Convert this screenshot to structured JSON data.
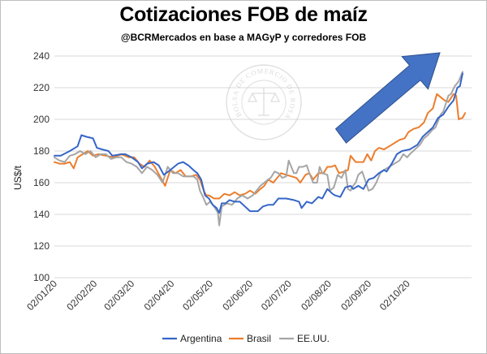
{
  "header": {
    "title": "Cotizaciones FOB de maíz",
    "subtitle": "@BCRMercados  en base a MAGyP y corredores FOB"
  },
  "watermark": {
    "text": "BOLSA DE COMERCIO DE ROSARIO"
  },
  "colors": {
    "argentina": "#3566c8",
    "brasil": "#ec7d2c",
    "eeuu": "#a5a5a5",
    "arrow": "#4472c4",
    "grid": "#d9d9d9"
  },
  "chart_data": {
    "type": "line",
    "title": "Cotizaciones FOB de maíz",
    "xlabel": "",
    "ylabel": "US$/t",
    "ylim": [
      100,
      240
    ],
    "yticks": [
      100,
      120,
      140,
      160,
      180,
      200,
      220,
      240
    ],
    "x_tick_labels": [
      "02/01/20",
      "02/02/20",
      "02/03/20",
      "02/04/20",
      "02/05/20",
      "02/06/20",
      "02/07/20",
      "02/08/20",
      "02/09/20",
      "02/10/20"
    ],
    "x_start": "2020-01-02",
    "legend_position": "bottom",
    "grid": true,
    "series": [
      {
        "name": "Argentina",
        "key": "argentina",
        "points": [
          [
            0,
            177
          ],
          [
            5,
            177
          ],
          [
            12,
            180
          ],
          [
            18,
            183
          ],
          [
            21,
            190
          ],
          [
            25,
            189
          ],
          [
            30,
            188
          ],
          [
            33,
            182
          ],
          [
            37,
            181
          ],
          [
            42,
            180
          ],
          [
            45,
            177
          ],
          [
            52,
            178
          ],
          [
            55,
            178
          ],
          [
            60,
            176
          ],
          [
            65,
            173
          ],
          [
            68,
            169
          ],
          [
            72,
            172
          ],
          [
            77,
            173
          ],
          [
            81,
            171
          ],
          [
            85,
            165
          ],
          [
            90,
            168
          ],
          [
            96,
            172
          ],
          [
            100,
            173
          ],
          [
            104,
            171
          ],
          [
            108,
            168
          ],
          [
            111,
            166
          ],
          [
            114,
            162
          ],
          [
            117,
            152
          ],
          [
            120,
            150
          ],
          [
            123,
            146
          ],
          [
            126,
            144
          ],
          [
            128,
            141
          ],
          [
            130,
            147
          ],
          [
            133,
            147
          ],
          [
            136,
            149
          ],
          [
            140,
            148
          ],
          [
            144,
            148
          ],
          [
            148,
            145
          ],
          [
            152,
            142
          ],
          [
            158,
            142
          ],
          [
            162,
            145
          ],
          [
            166,
            146
          ],
          [
            170,
            146
          ],
          [
            174,
            150
          ],
          [
            180,
            150
          ],
          [
            186,
            149
          ],
          [
            190,
            148
          ],
          [
            192,
            144
          ],
          [
            196,
            148
          ],
          [
            200,
            147
          ],
          [
            205,
            151
          ],
          [
            208,
            150
          ],
          [
            212,
            156
          ],
          [
            216,
            153
          ],
          [
            218,
            152
          ],
          [
            222,
            151
          ],
          [
            226,
            157
          ],
          [
            230,
            158
          ],
          [
            232,
            156
          ],
          [
            236,
            158
          ],
          [
            240,
            156
          ],
          [
            244,
            162
          ],
          [
            248,
            163
          ],
          [
            252,
            166
          ],
          [
            256,
            168
          ],
          [
            258,
            167
          ],
          [
            262,
            172
          ],
          [
            266,
            178
          ],
          [
            270,
            180
          ],
          [
            276,
            181
          ],
          [
            282,
            184
          ],
          [
            286,
            189
          ],
          [
            290,
            192
          ],
          [
            294,
            195
          ],
          [
            298,
            201
          ],
          [
            302,
            203
          ],
          [
            306,
            208
          ],
          [
            310,
            212
          ],
          [
            313,
            220
          ],
          [
            315,
            221
          ],
          [
            317,
            229
          ]
        ]
      },
      {
        "name": "Brasil",
        "key": "brasil",
        "points": [
          [
            0,
            173
          ],
          [
            4,
            172
          ],
          [
            8,
            172
          ],
          [
            12,
            173
          ],
          [
            15,
            169
          ],
          [
            18,
            176
          ],
          [
            22,
            178
          ],
          [
            26,
            180
          ],
          [
            30,
            177
          ],
          [
            34,
            178
          ],
          [
            40,
            177
          ],
          [
            46,
            176
          ],
          [
            52,
            178
          ],
          [
            58,
            176
          ],
          [
            62,
            176
          ],
          [
            66,
            172
          ],
          [
            70,
            170
          ],
          [
            74,
            174
          ],
          [
            78,
            170
          ],
          [
            82,
            164
          ],
          [
            86,
            158
          ],
          [
            90,
            168
          ],
          [
            94,
            166
          ],
          [
            98,
            168
          ],
          [
            102,
            164
          ],
          [
            106,
            164
          ],
          [
            110,
            165
          ],
          [
            113,
            162
          ],
          [
            116,
            155
          ],
          [
            118,
            152
          ],
          [
            120,
            152
          ],
          [
            124,
            150
          ],
          [
            128,
            150
          ],
          [
            132,
            153
          ],
          [
            136,
            152
          ],
          [
            140,
            154
          ],
          [
            144,
            152
          ],
          [
            148,
            153
          ],
          [
            152,
            155
          ],
          [
            156,
            153
          ],
          [
            160,
            156
          ],
          [
            163,
            158
          ],
          [
            166,
            162
          ],
          [
            170,
            160
          ],
          [
            173,
            163
          ],
          [
            176,
            166
          ],
          [
            180,
            165
          ],
          [
            184,
            164
          ],
          [
            188,
            163
          ],
          [
            191,
            160
          ],
          [
            195,
            165
          ],
          [
            198,
            166
          ],
          [
            201,
            162
          ],
          [
            205,
            166
          ],
          [
            209,
            166
          ],
          [
            212,
            170
          ],
          [
            215,
            170
          ],
          [
            218,
            171
          ],
          [
            221,
            166
          ],
          [
            225,
            167
          ],
          [
            228,
            168
          ],
          [
            230,
            177
          ],
          [
            234,
            173
          ],
          [
            236,
            173
          ],
          [
            240,
            173
          ],
          [
            243,
            178
          ],
          [
            246,
            174
          ],
          [
            249,
            180
          ],
          [
            252,
            182
          ],
          [
            256,
            181
          ],
          [
            260,
            183
          ],
          [
            264,
            185
          ],
          [
            268,
            187
          ],
          [
            272,
            188
          ],
          [
            275,
            192
          ],
          [
            279,
            194
          ],
          [
            283,
            195
          ],
          [
            287,
            198
          ],
          [
            290,
            204
          ],
          [
            294,
            207
          ],
          [
            297,
            216
          ],
          [
            300,
            214
          ],
          [
            303,
            212
          ],
          [
            306,
            211
          ],
          [
            310,
            216
          ],
          [
            312,
            215
          ],
          [
            314,
            200
          ],
          [
            317,
            201
          ],
          [
            319,
            204
          ]
        ]
      },
      {
        "name": "EE.UU.",
        "key": "eeuu",
        "points": [
          [
            0,
            176
          ],
          [
            4,
            174
          ],
          [
            8,
            173
          ],
          [
            12,
            177
          ],
          [
            16,
            178
          ],
          [
            20,
            180
          ],
          [
            24,
            178
          ],
          [
            28,
            180
          ],
          [
            32,
            176
          ],
          [
            36,
            178
          ],
          [
            40,
            178
          ],
          [
            44,
            175
          ],
          [
            48,
            176
          ],
          [
            52,
            176
          ],
          [
            56,
            173
          ],
          [
            60,
            172
          ],
          [
            64,
            170
          ],
          [
            68,
            166
          ],
          [
            72,
            170
          ],
          [
            76,
            168
          ],
          [
            80,
            165
          ],
          [
            84,
            160
          ],
          [
            88,
            170
          ],
          [
            92,
            166
          ],
          [
            96,
            166
          ],
          [
            100,
            164
          ],
          [
            104,
            164
          ],
          [
            108,
            164
          ],
          [
            111,
            162
          ],
          [
            113,
            155
          ],
          [
            116,
            150
          ],
          [
            118,
            146
          ],
          [
            121,
            148
          ],
          [
            124,
            145
          ],
          [
            127,
            141
          ],
          [
            128,
            133
          ],
          [
            130,
            145
          ],
          [
            134,
            147
          ],
          [
            138,
            146
          ],
          [
            142,
            150
          ],
          [
            146,
            152
          ],
          [
            150,
            150
          ],
          [
            154,
            152
          ],
          [
            157,
            155
          ],
          [
            160,
            158
          ],
          [
            163,
            160
          ],
          [
            166,
            162
          ],
          [
            168,
            163
          ],
          [
            171,
            167
          ],
          [
            174,
            166
          ],
          [
            177,
            163
          ],
          [
            180,
            164
          ],
          [
            182,
            174
          ],
          [
            184,
            170
          ],
          [
            186,
            166
          ],
          [
            188,
            166
          ],
          [
            190,
            170
          ],
          [
            193,
            170
          ],
          [
            196,
            171
          ],
          [
            198,
            166
          ],
          [
            201,
            160
          ],
          [
            204,
            160
          ],
          [
            206,
            170
          ],
          [
            208,
            166
          ],
          [
            212,
            165
          ],
          [
            214,
            155
          ],
          [
            217,
            157
          ],
          [
            220,
            165
          ],
          [
            223,
            163
          ],
          [
            226,
            168
          ],
          [
            228,
            156
          ],
          [
            230,
            155
          ],
          [
            232,
            158
          ],
          [
            234,
            160
          ],
          [
            236,
            165
          ],
          [
            239,
            167
          ],
          [
            242,
            160
          ],
          [
            244,
            155
          ],
          [
            247,
            156
          ],
          [
            250,
            160
          ],
          [
            253,
            166
          ],
          [
            256,
            168
          ],
          [
            260,
            170
          ],
          [
            264,
            172
          ],
          [
            268,
            174
          ],
          [
            271,
            178
          ],
          [
            274,
            176
          ],
          [
            276,
            178
          ],
          [
            280,
            181
          ],
          [
            284,
            184
          ],
          [
            287,
            188
          ],
          [
            290,
            190
          ],
          [
            293,
            193
          ],
          [
            296,
            195
          ],
          [
            298,
            199
          ],
          [
            300,
            203
          ],
          [
            302,
            205
          ],
          [
            304,
            210
          ],
          [
            306,
            215
          ],
          [
            308,
            216
          ],
          [
            311,
            221
          ],
          [
            314,
            224
          ],
          [
            317,
            230
          ]
        ]
      }
    ]
  }
}
